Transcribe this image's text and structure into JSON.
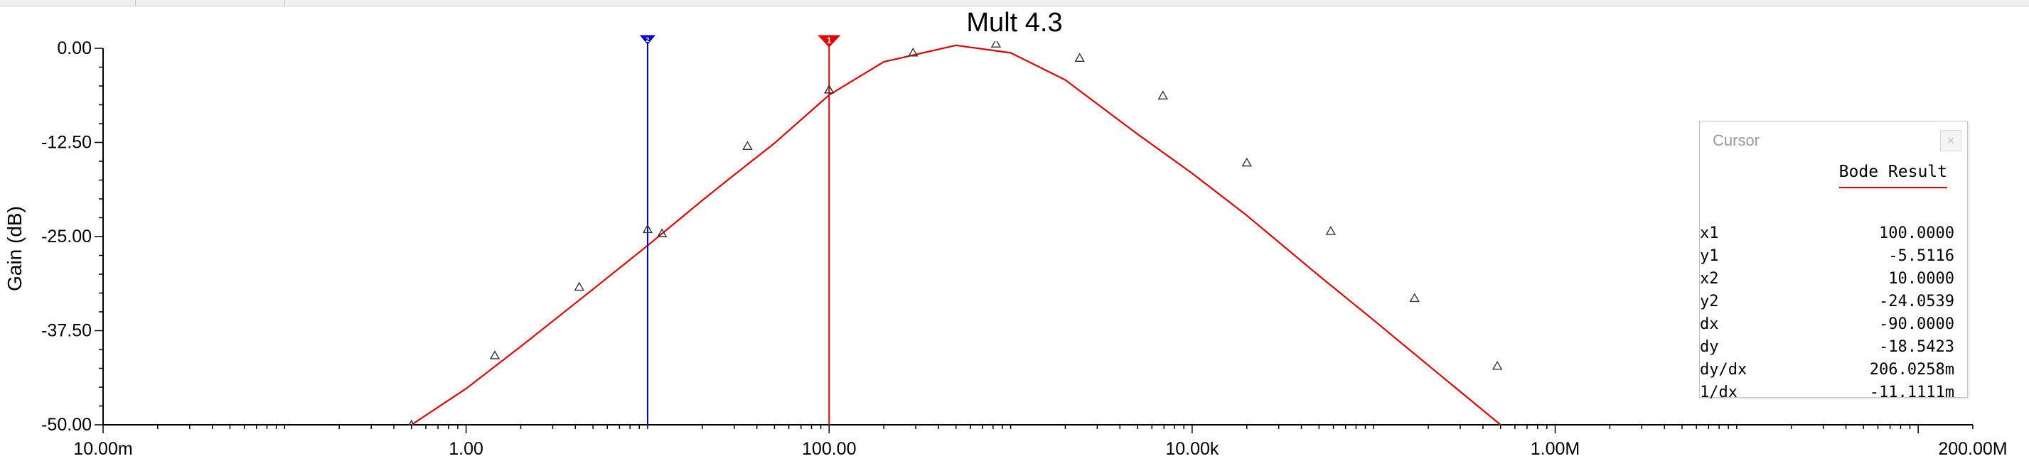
{
  "chart_data": {
    "type": "line",
    "title": "Mult 4.3",
    "xlabel": "",
    "ylabel": "Gain (dB)",
    "x_scale": "log",
    "xlim": [
      0.01,
      200000000
    ],
    "ylim": [
      -50,
      0
    ],
    "x_ticks": [
      0.01,
      1,
      100,
      10000,
      1000000,
      200000000
    ],
    "x_tick_labels": [
      "10.00m",
      "1.00",
      "100.00",
      "10.00k",
      "1.00M",
      "200.00M"
    ],
    "y_ticks": [
      0,
      -12.5,
      -25,
      -37.5,
      -50
    ],
    "y_tick_labels": [
      "0.00",
      "-12.50",
      "-25.00",
      "-37.50",
      "-50.00"
    ],
    "grid": false,
    "series": [
      {
        "color": "#e00000",
        "marker": "triangle",
        "x": [
          0.5,
          1,
          2,
          5,
          10,
          20,
          30,
          50,
          100,
          200,
          500,
          1000,
          2000,
          5000,
          10000,
          20000,
          50000,
          100000,
          200000,
          500000,
          1000000
        ],
        "y": [
          -50,
          -45.2,
          -39.6,
          -32.0,
          -26.2,
          -20.2,
          -16.8,
          -12.6,
          -6.2,
          -1.8,
          0.4,
          -0.6,
          -4.2,
          -11.4,
          -16.6,
          -22.2,
          -30.2,
          -36.1,
          -42.1,
          -50,
          -55.9
        ]
      },
      {
        "color": "#000000",
        "marker": "triangle",
        "name": "",
        "x": [
          0.5,
          1.44,
          4.2,
          12,
          35.5,
          100,
          290,
          830,
          2400,
          6900,
          20000,
          58000,
          168000,
          480000
        ],
        "y": [
          -50,
          -40.8,
          -31.7,
          -24.6,
          -13.0,
          -5.5,
          -0.6,
          0.6,
          -1.3,
          -6.3,
          -15.2,
          -24.3,
          -33.2,
          -42.2
        ]
      }
    ],
    "cursors": [
      {
        "id": "1",
        "x": 100,
        "color": "#e00000"
      },
      {
        "id": "2",
        "x": 10,
        "color": "#0000cc"
      }
    ]
  },
  "cursor_panel": {
    "title": "Cursor",
    "close_label": "×",
    "legend_label": "Bode Result",
    "rows": [
      {
        "label": "x1",
        "value": "100.0000"
      },
      {
        "label": "y1",
        "value": "-5.5116"
      },
      {
        "label": "x2",
        "value": "10.0000"
      },
      {
        "label": "y2",
        "value": "-24.0539"
      },
      {
        "label": "dx",
        "value": "-90.0000"
      },
      {
        "label": "dy",
        "value": "-18.5423"
      },
      {
        "label": "dy/dx",
        "value": "206.0258m"
      },
      {
        "label": "1/dx",
        "value": "-11.1111m"
      }
    ]
  }
}
